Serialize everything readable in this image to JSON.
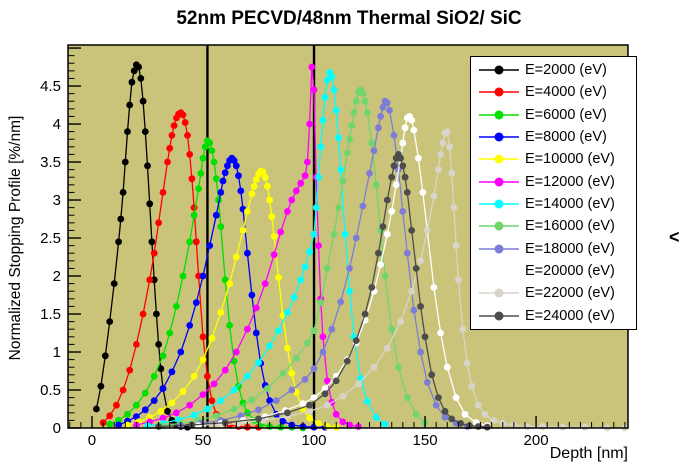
{
  "page": {
    "side_glyph": "<"
  },
  "chart_data": {
    "type": "line",
    "title": "52nm PECVD/48nm Thermal SiO2/ SiC",
    "xlabel": "Depth [nm]",
    "ylabel": "Normalized Stopping Profile [%/nm]",
    "xlim": [
      -10.8,
      241.4
    ],
    "ylim": [
      0,
      5.04
    ],
    "x_major_ticks": [
      0,
      50,
      100,
      150,
      200
    ],
    "x_tick_labels": [
      "0",
      "50",
      "100",
      "150",
      "200"
    ],
    "x_minor_step": 5,
    "y_major_ticks": [
      0,
      0.5,
      1,
      1.5,
      2,
      2.5,
      3,
      3.5,
      4,
      4.5
    ],
    "y_tick_labels": [
      "0",
      "0.5",
      "1",
      "1.5",
      "2",
      "2.5",
      "3",
      "3.5",
      "4",
      "4.5"
    ],
    "y_minor_step": 0.1,
    "grid": false,
    "background_color": "#cac47b",
    "boundary_lines_x": [
      52,
      100
    ],
    "legend_position": "top-right",
    "series": [
      {
        "name": "E=2000 (eV)",
        "color": "#000000",
        "x": [
          2,
          4,
          6,
          8,
          10,
          12,
          13,
          14,
          15,
          16,
          17,
          18,
          19,
          20,
          21,
          22,
          23,
          24,
          25,
          26,
          27,
          28,
          29,
          30,
          31,
          32,
          34,
          36,
          38,
          40,
          43
        ],
        "y": [
          0.25,
          0.55,
          0.95,
          1.4,
          1.9,
          2.45,
          2.75,
          3.1,
          3.5,
          3.9,
          4.25,
          4.55,
          4.7,
          4.78,
          4.75,
          4.6,
          4.3,
          3.9,
          3.45,
          2.95,
          2.45,
          1.95,
          1.5,
          1.1,
          0.78,
          0.52,
          0.22,
          0.1,
          0.04,
          0.02,
          0.01
        ]
      },
      {
        "name": "E=4000 (eV)",
        "color": "#ff0000",
        "x": [
          5,
          8,
          11,
          14,
          17,
          20,
          23,
          26,
          28,
          30,
          32,
          34,
          35,
          36,
          37,
          38,
          39,
          40,
          41,
          42,
          43,
          44,
          45,
          46,
          47,
          48,
          50,
          52,
          54,
          56,
          58,
          62,
          66,
          70,
          75
        ],
        "y": [
          0.07,
          0.16,
          0.3,
          0.5,
          0.76,
          1.1,
          1.5,
          1.95,
          2.3,
          2.7,
          3.1,
          3.5,
          3.68,
          3.85,
          3.98,
          4.08,
          4.13,
          4.15,
          4.12,
          4.02,
          3.85,
          3.6,
          3.28,
          2.9,
          2.45,
          2.0,
          1.2,
          0.68,
          0.36,
          0.18,
          0.09,
          0.04,
          0.02,
          0.01,
          0.01
        ]
      },
      {
        "name": "E=6000 (eV)",
        "color": "#00e000",
        "x": [
          8,
          12,
          16,
          20,
          24,
          28,
          32,
          35,
          38,
          41,
          44,
          46,
          48,
          49,
          50,
          51,
          52,
          53,
          54,
          55,
          56,
          57,
          58,
          60,
          62,
          64,
          66,
          68,
          70,
          73,
          76,
          80,
          85,
          90,
          95
        ],
        "y": [
          0.05,
          0.1,
          0.18,
          0.3,
          0.46,
          0.68,
          0.95,
          1.25,
          1.6,
          2.0,
          2.45,
          2.8,
          3.15,
          3.35,
          3.55,
          3.7,
          3.78,
          3.75,
          3.65,
          3.5,
          3.28,
          3.0,
          2.65,
          1.95,
          1.35,
          0.88,
          0.55,
          0.33,
          0.2,
          0.1,
          0.05,
          0.02,
          0.01,
          0.01,
          0.0
        ]
      },
      {
        "name": "E=8000 (eV)",
        "color": "#0000ff",
        "x": [
          12,
          16,
          20,
          24,
          28,
          32,
          36,
          40,
          44,
          47,
          50,
          53,
          56,
          58,
          59,
          60,
          61,
          62,
          63,
          64,
          65,
          66,
          67,
          68,
          70,
          72,
          74,
          76,
          78,
          80,
          83,
          86,
          90,
          95,
          100,
          105
        ],
        "y": [
          0.04,
          0.09,
          0.15,
          0.24,
          0.36,
          0.52,
          0.74,
          1.0,
          1.35,
          1.65,
          2.0,
          2.4,
          2.8,
          3.1,
          3.25,
          3.36,
          3.45,
          3.52,
          3.55,
          3.52,
          3.45,
          3.32,
          3.12,
          2.88,
          2.3,
          1.75,
          1.25,
          0.85,
          0.56,
          0.36,
          0.18,
          0.09,
          0.04,
          0.02,
          0.01,
          0.01
        ]
      },
      {
        "name": "E=10000 (eV)",
        "color": "#ffff00",
        "x": [
          16,
          21,
          26,
          31,
          36,
          41,
          46,
          50,
          54,
          58,
          62,
          65,
          68,
          70,
          72,
          73,
          74,
          75,
          76,
          77,
          78,
          79,
          80,
          81,
          82,
          84,
          86,
          88,
          90,
          92,
          95,
          98,
          102,
          106,
          110
        ],
        "y": [
          0.04,
          0.08,
          0.14,
          0.22,
          0.33,
          0.48,
          0.68,
          0.9,
          1.18,
          1.52,
          1.9,
          2.25,
          2.6,
          2.85,
          3.08,
          3.18,
          3.27,
          3.34,
          3.38,
          3.37,
          3.3,
          3.18,
          3.0,
          2.78,
          2.52,
          1.98,
          1.48,
          1.05,
          0.72,
          0.47,
          0.25,
          0.13,
          0.06,
          0.02,
          0.01
        ]
      },
      {
        "name": "E=12000 (eV)",
        "color": "#ff00ff",
        "x": [
          20,
          26,
          32,
          38,
          44,
          50,
          55,
          60,
          65,
          70,
          74,
          78,
          82,
          85,
          88,
          90,
          92,
          94,
          96,
          97,
          98,
          99,
          100,
          101,
          102,
          103,
          104,
          106,
          108,
          110,
          113,
          116,
          120
        ],
        "y": [
          0.04,
          0.08,
          0.13,
          0.2,
          0.3,
          0.44,
          0.58,
          0.76,
          1.0,
          1.3,
          1.58,
          1.9,
          2.28,
          2.58,
          2.85,
          3.0,
          3.12,
          3.22,
          3.32,
          3.5,
          4.0,
          4.75,
          4.45,
          3.3,
          2.4,
          1.7,
          1.2,
          0.62,
          0.34,
          0.18,
          0.08,
          0.04,
          0.02
        ]
      },
      {
        "name": "E=14000 (eV)",
        "color": "#00ffff",
        "x": [
          25,
          32,
          39,
          46,
          52,
          58,
          64,
          70,
          75,
          80,
          84,
          88,
          91,
          94,
          96,
          98,
          100,
          101,
          102,
          103,
          104,
          105,
          106,
          107,
          108,
          109,
          110,
          111,
          112,
          114,
          116,
          118,
          121,
          124,
          128,
          132
        ],
        "y": [
          0.03,
          0.06,
          0.11,
          0.17,
          0.25,
          0.36,
          0.5,
          0.68,
          0.86,
          1.08,
          1.28,
          1.52,
          1.72,
          1.95,
          2.12,
          2.32,
          2.55,
          2.9,
          3.3,
          3.7,
          4.05,
          4.35,
          4.58,
          4.68,
          4.62,
          4.45,
          4.18,
          3.82,
          3.4,
          2.55,
          1.8,
          1.2,
          0.65,
          0.35,
          0.14,
          0.05
        ]
      },
      {
        "name": "E=16000 (eV)",
        "color": "#6fd66f",
        "x": [
          32,
          40,
          48,
          56,
          64,
          72,
          79,
          86,
          92,
          97,
          100,
          103,
          106,
          109,
          111,
          113,
          115,
          116,
          117,
          118,
          119,
          120,
          121,
          122,
          123,
          124,
          126,
          128,
          130,
          132,
          135,
          138,
          142,
          146,
          150
        ],
        "y": [
          0.03,
          0.06,
          0.1,
          0.16,
          0.25,
          0.37,
          0.52,
          0.72,
          0.92,
          1.12,
          1.28,
          1.65,
          2.1,
          2.55,
          2.9,
          3.25,
          3.62,
          3.8,
          3.98,
          4.15,
          4.3,
          4.42,
          4.45,
          4.4,
          4.3,
          4.15,
          3.75,
          3.2,
          2.6,
          2.0,
          1.3,
          0.8,
          0.4,
          0.18,
          0.07
        ]
      },
      {
        "name": "E=18000 (eV)",
        "color": "#7d7dd8",
        "x": [
          40,
          49,
          58,
          67,
          75,
          83,
          90,
          96,
          100,
          104,
          108,
          112,
          116,
          119,
          122,
          125,
          127,
          129,
          130,
          131,
          132,
          133,
          134,
          136,
          138,
          140,
          142,
          145,
          148,
          151,
          155,
          159,
          164,
          169
        ],
        "y": [
          0.03,
          0.06,
          0.1,
          0.16,
          0.24,
          0.36,
          0.5,
          0.64,
          0.78,
          1.0,
          1.3,
          1.66,
          2.1,
          2.5,
          2.92,
          3.35,
          3.65,
          3.95,
          4.1,
          4.22,
          4.3,
          4.28,
          4.18,
          3.85,
          3.4,
          2.85,
          2.3,
          1.55,
          1.0,
          0.6,
          0.3,
          0.14,
          0.06,
          0.02
        ]
      },
      {
        "name": "E=20000 (eV)",
        "color": "#ffffff",
        "x": [
          48,
          58,
          68,
          78,
          87,
          95,
          100,
          105,
          110,
          115,
          119,
          123,
          127,
          130,
          133,
          135,
          137,
          139,
          140,
          141,
          142,
          143,
          144,
          145,
          147,
          149,
          151,
          154,
          157,
          160,
          164,
          168,
          173,
          178
        ],
        "y": [
          0.03,
          0.06,
          0.1,
          0.15,
          0.23,
          0.32,
          0.4,
          0.52,
          0.68,
          0.9,
          1.12,
          1.42,
          1.8,
          2.15,
          2.55,
          2.85,
          3.2,
          3.55,
          3.75,
          3.95,
          4.08,
          4.1,
          4.05,
          3.92,
          3.55,
          3.1,
          2.6,
          1.85,
          1.25,
          0.8,
          0.4,
          0.18,
          0.07,
          0.03
        ]
      },
      {
        "name": "E=22000 (eV)",
        "color": "#d9d4c8",
        "x": [
          55,
          66,
          77,
          88,
          98,
          106,
          113,
          120,
          127,
          133,
          139,
          144,
          148,
          151,
          154,
          156,
          157,
          158,
          159,
          160,
          161,
          162,
          163,
          164,
          165,
          167,
          169,
          171,
          174,
          177,
          181,
          185,
          190,
          196,
          203,
          212,
          222,
          232,
          240
        ],
        "y": [
          0.03,
          0.06,
          0.1,
          0.15,
          0.22,
          0.3,
          0.42,
          0.58,
          0.8,
          1.05,
          1.4,
          1.8,
          2.2,
          2.6,
          3.05,
          3.4,
          3.6,
          3.75,
          3.88,
          3.9,
          3.7,
          3.35,
          2.9,
          2.4,
          1.95,
          1.3,
          0.85,
          0.55,
          0.3,
          0.18,
          0.1,
          0.06,
          0.04,
          0.02,
          0.02,
          0.01,
          0.01,
          0.0,
          0.0
        ]
      },
      {
        "name": "E=24000 (eV)",
        "color": "#4d4d4d",
        "x": [
          30,
          45,
          60,
          75,
          88,
          98,
          105,
          110,
          115,
          119,
          123,
          126,
          129,
          131,
          133,
          135,
          136,
          137,
          138,
          139,
          140,
          141,
          142,
          144,
          146,
          148,
          150,
          153,
          156,
          159,
          162,
          166,
          170,
          174,
          178
        ],
        "y": [
          0.02,
          0.04,
          0.07,
          0.12,
          0.2,
          0.3,
          0.45,
          0.62,
          0.88,
          1.15,
          1.5,
          1.85,
          2.3,
          2.65,
          3.0,
          3.3,
          3.45,
          3.55,
          3.6,
          3.55,
          3.45,
          3.3,
          3.1,
          2.6,
          2.1,
          1.6,
          1.2,
          0.7,
          0.4,
          0.22,
          0.12,
          0.06,
          0.03,
          0.02,
          0.01
        ]
      }
    ]
  }
}
